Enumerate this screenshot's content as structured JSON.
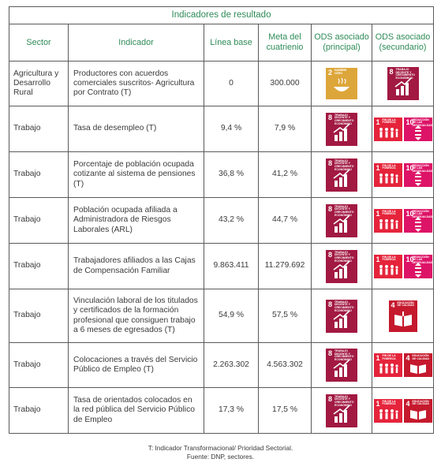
{
  "table": {
    "title": "Indicadores de resultado",
    "headers": {
      "sector": "Sector",
      "indicador": "Indicador",
      "linea_base": "Línea base",
      "meta": "Meta del cuatrienio",
      "ods_principal": "ODS asociado (principal)",
      "ods_secundario": "ODS asociado (secundario)"
    },
    "rows": [
      {
        "sector": "Agricultura y Desarrollo Rural",
        "indicador": "Productores con acuerdos comerciales suscritos- Agricultura por Contrato (T)",
        "linea_base": "0",
        "meta": "300.000",
        "ods_principal": [
          "2"
        ],
        "ods_secundario": [
          "8"
        ]
      },
      {
        "sector": "Trabajo",
        "indicador": "Tasa de desempleo (T)",
        "linea_base": "9,4 %",
        "meta": "7,9 %",
        "ods_principal": [
          "8"
        ],
        "ods_secundario": [
          "1",
          "10"
        ]
      },
      {
        "sector": "Trabajo",
        "indicador": "Porcentaje de población ocupada cotizante al sistema de pensiones (T)",
        "linea_base": "36,8 %",
        "meta": "41,2 %",
        "ods_principal": [
          "8"
        ],
        "ods_secundario": [
          "1",
          "10"
        ]
      },
      {
        "sector": "Trabajo",
        "indicador": "Población ocupada afiliada a Administradora de Riesgos Laborales (ARL)",
        "linea_base": "43,2 %",
        "meta": "44,7 %",
        "ods_principal": [
          "8"
        ],
        "ods_secundario": [
          "1",
          "10"
        ]
      },
      {
        "sector": "Trabajo",
        "indicador": "Trabajadores afiliados a las Cajas de Compensación Familiar",
        "linea_base": "9.863.411",
        "meta": "11.279.692",
        "ods_principal": [
          "8"
        ],
        "ods_secundario": [
          "1",
          "10"
        ]
      },
      {
        "sector": "Trabajo",
        "indicador": "Vinculación laboral de los titulados y certificados de la formación profesional que consiguen trabajo a 6 meses de egresados (T)",
        "linea_base": "54,9 %",
        "meta": "57,5 %",
        "ods_principal": [
          "8"
        ],
        "ods_secundario": [
          "4"
        ]
      },
      {
        "sector": "Trabajo",
        "indicador": "Colocaciones a través del Servicio Público de Empleo (T)",
        "linea_base": "2.263.302",
        "meta": "4.563.302",
        "ods_principal": [
          "8"
        ],
        "ods_secundario": [
          "1",
          "4"
        ]
      },
      {
        "sector": "Trabajo",
        "indicador": "Tasa de orientados colocados en la red pública del Servicio Público de Empleo",
        "linea_base": "17,3 %",
        "meta": "17,5 %",
        "ods_principal": [
          "8"
        ],
        "ods_secundario": [
          "1",
          "4"
        ]
      }
    ]
  },
  "sdg_labels": {
    "2": "HAMBRE CERO",
    "8": "TRABAJO DECENTE Y CRECIMIENTO ECONÓMICO",
    "1": "FIN DE LA POBREZA",
    "10": "REDUCCIÓN DE LAS DESIGUALDADES",
    "4": "EDUCACIÓN DE CALIDAD"
  },
  "sdg_colors": {
    "1": "#e5243b",
    "2": "#dda63a",
    "4": "#c5192d",
    "8": "#a21942",
    "10": "#dd1367"
  },
  "footnote": {
    "line1": "T: Indicador Transformacional/ Prioridad Sectorial.",
    "line2": "Fuente: DNP, sectores."
  }
}
